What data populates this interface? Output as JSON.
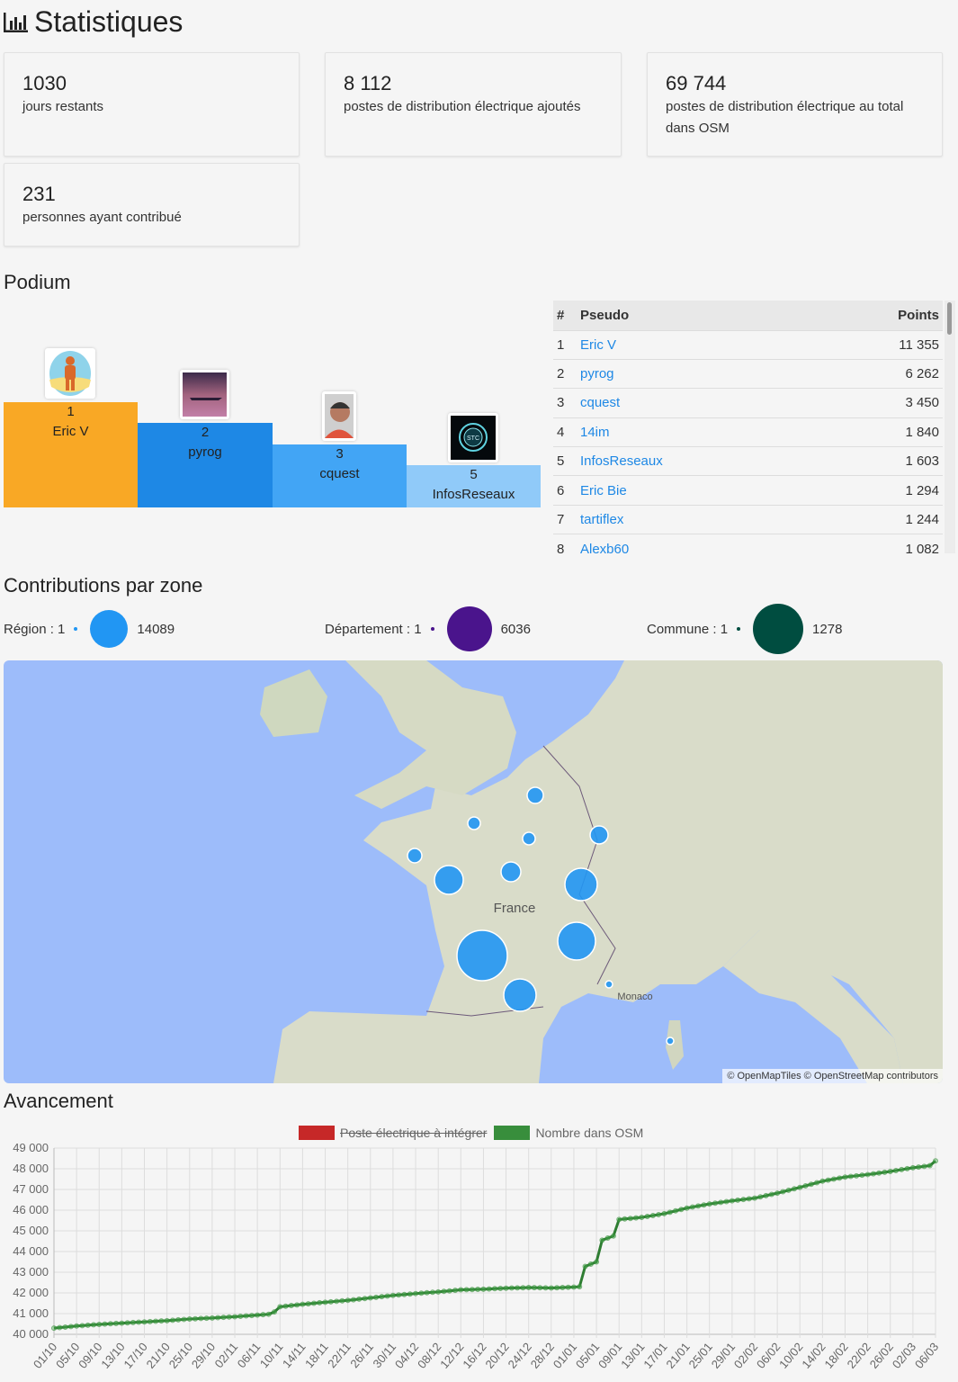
{
  "title": "Statistiques",
  "cards": [
    {
      "value": "1030",
      "label": "jours restants"
    },
    {
      "value": "8 112",
      "label": "postes de distribution électrique ajoutés"
    },
    {
      "value": "69 744",
      "label": "postes de distribution électrique au total dans OSM"
    },
    {
      "value": "231",
      "label": "personnes ayant contribué"
    }
  ],
  "podium": {
    "title": "Podium",
    "steps": [
      {
        "rank": "1",
        "name": "Eric V",
        "color": "#f9a825"
      },
      {
        "rank": "2",
        "name": "pyrog",
        "color": "#1e88e5"
      },
      {
        "rank": "3",
        "name": "cquest",
        "color": "#42a5f5"
      },
      {
        "rank": "5",
        "name": "InfosReseaux",
        "color": "#90caf9"
      }
    ],
    "table": {
      "headers": [
        "#",
        "Pseudo",
        "Points"
      ],
      "rows": [
        [
          "1",
          "Eric V",
          "11 355"
        ],
        [
          "2",
          "pyrog",
          "6 262"
        ],
        [
          "3",
          "cquest",
          "3 450"
        ],
        [
          "4",
          "14im",
          "1 840"
        ],
        [
          "5",
          "InfosReseaux",
          "1 603"
        ],
        [
          "6",
          "Eric Bie",
          "1 294"
        ],
        [
          "7",
          "tartiflex",
          "1 244"
        ],
        [
          "8",
          "Alexb60",
          "1 082"
        ]
      ]
    }
  },
  "zones": {
    "title": "Contributions par zone",
    "legend": [
      {
        "label": "Région : 1",
        "value": "14089",
        "color": "#2196f3"
      },
      {
        "label": "Département : 1",
        "value": "6036",
        "color": "#4a148c"
      },
      {
        "label": "Commune : 1",
        "value": "1278",
        "color": "#004d40"
      }
    ],
    "map": {
      "labels": [
        "France",
        "Monaco"
      ],
      "attribution": "© OpenMapTiles © OpenStreetMap contributors"
    }
  },
  "progress": {
    "title": "Avancement",
    "chart_data": {
      "type": "line",
      "legend": [
        {
          "name": "Poste électrique à intégrer",
          "color": "#c62828",
          "hidden": true
        },
        {
          "name": "Nombre dans OSM",
          "color": "#388e3c"
        }
      ],
      "ylim": [
        40000,
        49000
      ],
      "yticks": [
        "40 000",
        "41 000",
        "42 000",
        "43 000",
        "44 000",
        "45 000",
        "46 000",
        "47 000",
        "48 000",
        "49 000"
      ],
      "xticks": [
        "01/10",
        "05/10",
        "09/10",
        "13/10",
        "17/10",
        "21/10",
        "25/10",
        "29/10",
        "02/11",
        "06/11",
        "10/11",
        "14/11",
        "18/11",
        "22/11",
        "26/11",
        "30/11",
        "04/12",
        "08/12",
        "12/12",
        "16/12",
        "20/12",
        "24/12",
        "28/12",
        "01/01",
        "05/01",
        "09/01",
        "13/01",
        "17/01",
        "21/01",
        "25/01",
        "29/01",
        "02/02",
        "06/02",
        "10/02",
        "14/02",
        "18/02",
        "22/02",
        "26/02",
        "02/03",
        "06/03"
      ],
      "grid": true,
      "series": [
        {
          "name": "Nombre dans OSM",
          "points": [
            [
              "01/10",
              40300
            ],
            [
              "05/10",
              40400
            ],
            [
              "09/10",
              40480
            ],
            [
              "13/10",
              40540
            ],
            [
              "17/10",
              40600
            ],
            [
              "21/10",
              40660
            ],
            [
              "25/10",
              40740
            ],
            [
              "29/10",
              40790
            ],
            [
              "02/11",
              40850
            ],
            [
              "06/11",
              40930
            ],
            [
              "08/11",
              40970
            ],
            [
              "09/11",
              41080
            ],
            [
              "10/11",
              41330
            ],
            [
              "14/11",
              41450
            ],
            [
              "18/11",
              41550
            ],
            [
              "22/11",
              41640
            ],
            [
              "26/11",
              41760
            ],
            [
              "30/11",
              41880
            ],
            [
              "04/12",
              41970
            ],
            [
              "08/12",
              42050
            ],
            [
              "12/12",
              42150
            ],
            [
              "16/12",
              42180
            ],
            [
              "20/12",
              42230
            ],
            [
              "24/12",
              42260
            ],
            [
              "28/12",
              42240
            ],
            [
              "01/01",
              42280
            ],
            [
              "02/01",
              42300
            ],
            [
              "03/01",
              43280
            ],
            [
              "05/01",
              43500
            ],
            [
              "06/01",
              44550
            ],
            [
              "08/01",
              44750
            ],
            [
              "09/01",
              45550
            ],
            [
              "13/01",
              45650
            ],
            [
              "17/01",
              45830
            ],
            [
              "21/01",
              46100
            ],
            [
              "25/01",
              46300
            ],
            [
              "29/01",
              46450
            ],
            [
              "02/02",
              46580
            ],
            [
              "06/02",
              46820
            ],
            [
              "10/02",
              47100
            ],
            [
              "14/02",
              47400
            ],
            [
              "18/02",
              47600
            ],
            [
              "22/02",
              47720
            ],
            [
              "26/02",
              47870
            ],
            [
              "02/03",
              48050
            ],
            [
              "05/03",
              48150
            ],
            [
              "06/03",
              48380
            ]
          ]
        }
      ]
    }
  }
}
